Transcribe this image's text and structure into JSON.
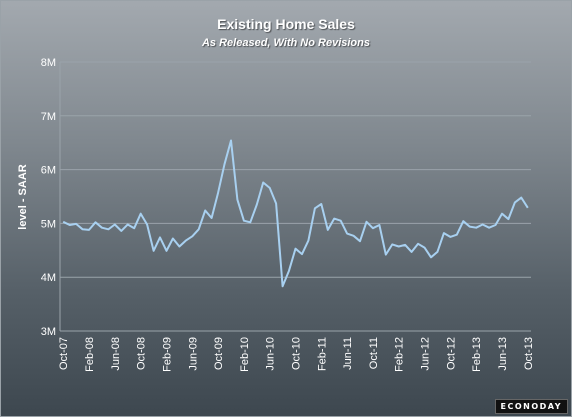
{
  "chart_data": {
    "type": "line",
    "title": "Existing Home Sales",
    "subtitle": "As Released, With No Revisions",
    "ylabel": "level - SAAR",
    "xlabel": "",
    "ylim": [
      3,
      8
    ],
    "yticks": [
      3,
      4,
      5,
      6,
      7,
      8
    ],
    "ytick_labels": [
      "3M",
      "4M",
      "5M",
      "6M",
      "7M",
      "8M"
    ],
    "xtick_labels": [
      "Oct-07",
      "Feb-08",
      "Jun-08",
      "Oct-08",
      "Feb-09",
      "Jun-09",
      "Oct-09",
      "Feb-10",
      "Jun-10",
      "Oct-10",
      "Feb-11",
      "Jun-11",
      "Oct-11",
      "Feb-12",
      "Jun-12",
      "Oct-12",
      "Feb-13",
      "Jun-13",
      "Oct-13"
    ],
    "grid": true,
    "line_color": "#a8d0f0",
    "series": [
      {
        "values": [
          5.03,
          4.97,
          4.99,
          4.89,
          4.88,
          5.02,
          4.92,
          4.89,
          4.98,
          4.86,
          4.98,
          4.91,
          5.18,
          4.98,
          4.49,
          4.74,
          4.49,
          4.72,
          4.57,
          4.68,
          4.76,
          4.89,
          5.24,
          5.1,
          5.57,
          6.1,
          6.54,
          5.44,
          5.05,
          5.02,
          5.35,
          5.76,
          5.66,
          5.37,
          3.83,
          4.12,
          4.53,
          4.43,
          4.68,
          5.28,
          5.36,
          4.88,
          5.09,
          5.05,
          4.81,
          4.77,
          4.67,
          5.03,
          4.91,
          4.97,
          4.42,
          4.61,
          4.57,
          4.6,
          4.47,
          4.62,
          4.55,
          4.37,
          4.47,
          4.82,
          4.75,
          4.79,
          5.04,
          4.94,
          4.92,
          4.98,
          4.92,
          4.97,
          5.18,
          5.08,
          5.39,
          5.48,
          5.29
        ]
      }
    ]
  },
  "branding": {
    "logo_text": "ECONODAY"
  },
  "colors": {
    "grid": "#9aa3aa",
    "text": "#ffffff",
    "line": "#a8d0f0"
  }
}
